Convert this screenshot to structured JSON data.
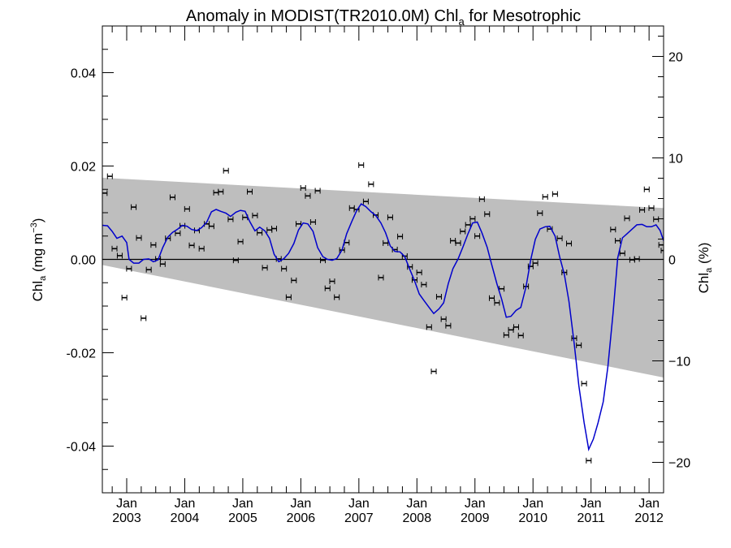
{
  "chart_data": {
    "type": "scatter",
    "title": {
      "prefix": "Anomaly in MODIST(TR2010.0M) Chl",
      "sub": "a",
      "suffix": " for Mesotrophic"
    },
    "ylabel_left": {
      "base": "Chl",
      "sub": "a",
      "unit_open": " (mg m",
      "sup": "−3",
      "unit_close": ")"
    },
    "ylabel_right": {
      "base": "Chl",
      "sub": "a",
      "unit": " (%)"
    },
    "x_ticks": [
      {
        "month": "Jan",
        "year": "2003",
        "t": 2003.0
      },
      {
        "month": "Jan",
        "year": "2004",
        "t": 2004.0
      },
      {
        "month": "Jan",
        "year": "2005",
        "t": 2005.0
      },
      {
        "month": "Jan",
        "year": "2006",
        "t": 2006.0
      },
      {
        "month": "Jan",
        "year": "2007",
        "t": 2007.0
      },
      {
        "month": "Jan",
        "year": "2008",
        "t": 2008.0
      },
      {
        "month": "Jan",
        "year": "2009",
        "t": 2009.0
      },
      {
        "month": "Jan",
        "year": "2010",
        "t": 2010.0
      },
      {
        "month": "Jan",
        "year": "2011",
        "t": 2011.0
      },
      {
        "month": "Jan",
        "year": "2012",
        "t": 2012.0
      }
    ],
    "xlim": [
      2002.58,
      2012.25
    ],
    "ylim_left": [
      -0.05,
      0.05
    ],
    "yticks_left": [
      "0.04",
      "0.02",
      "0.00",
      "-0.02",
      "-0.04"
    ],
    "ylim_right": [
      -23,
      23
    ],
    "yticks_right": [
      "20",
      "10",
      "0",
      "−10",
      "−20"
    ],
    "band": {
      "upper": [
        [
          2002.58,
          0.0175
        ],
        [
          2012.25,
          0.011
        ]
      ],
      "lower": [
        [
          2002.58,
          -0.0012
        ],
        [
          2012.25,
          -0.0253
        ]
      ]
    },
    "zero_line": 0,
    "points": [
      [
        2002.62,
        0.0142
      ],
      [
        2002.71,
        0.0178
      ],
      [
        2002.79,
        0.0023
      ],
      [
        2002.88,
        0.0008
      ],
      [
        2002.96,
        -0.0082
      ],
      [
        2003.04,
        -0.002
      ],
      [
        2003.12,
        0.0112
      ],
      [
        2003.21,
        0.0046
      ],
      [
        2003.29,
        -0.0126
      ],
      [
        2003.38,
        -0.0022
      ],
      [
        2003.46,
        0.0031
      ],
      [
        2003.54,
        0.0001
      ],
      [
        2003.62,
        -0.001
      ],
      [
        2003.71,
        0.0045
      ],
      [
        2003.79,
        0.0133
      ],
      [
        2003.88,
        0.0056
      ],
      [
        2003.96,
        0.0072
      ],
      [
        2004.04,
        0.0108
      ],
      [
        2004.12,
        0.003
      ],
      [
        2004.21,
        0.0062
      ],
      [
        2004.29,
        0.0023
      ],
      [
        2004.38,
        0.0076
      ],
      [
        2004.46,
        0.0071
      ],
      [
        2004.54,
        0.0143
      ],
      [
        2004.62,
        0.0145
      ],
      [
        2004.71,
        0.019
      ],
      [
        2004.79,
        0.0086
      ],
      [
        2004.88,
        -0.0002
      ],
      [
        2004.96,
        0.0038
      ],
      [
        2005.04,
        0.009
      ],
      [
        2005.12,
        0.0145
      ],
      [
        2005.21,
        0.0094
      ],
      [
        2005.29,
        0.0057
      ],
      [
        2005.38,
        -0.0018
      ],
      [
        2005.46,
        0.0063
      ],
      [
        2005.54,
        0.0066
      ],
      [
        2005.62,
        0.0001
      ],
      [
        2005.71,
        -0.002
      ],
      [
        2005.79,
        -0.0081
      ],
      [
        2005.88,
        -0.0045
      ],
      [
        2005.96,
        0.0076
      ],
      [
        2006.04,
        0.0153
      ],
      [
        2006.12,
        0.0136
      ],
      [
        2006.21,
        0.008
      ],
      [
        2006.29,
        0.0147
      ],
      [
        2006.38,
        -0.0002
      ],
      [
        2006.46,
        -0.0062
      ],
      [
        2006.54,
        -0.0047
      ],
      [
        2006.62,
        -0.0081
      ],
      [
        2006.71,
        0.002
      ],
      [
        2006.79,
        0.0036
      ],
      [
        2006.88,
        0.011
      ],
      [
        2006.96,
        0.0107
      ],
      [
        2007.04,
        0.0202
      ],
      [
        2007.12,
        0.0124
      ],
      [
        2007.21,
        0.0161
      ],
      [
        2007.29,
        0.0095
      ],
      [
        2007.38,
        -0.0039
      ],
      [
        2007.46,
        0.0035
      ],
      [
        2007.54,
        0.009
      ],
      [
        2007.62,
        0.0021
      ],
      [
        2007.71,
        0.0049
      ],
      [
        2007.79,
        0.0007
      ],
      [
        2007.88,
        -0.0016
      ],
      [
        2007.96,
        -0.0044
      ],
      [
        2008.04,
        -0.0028
      ],
      [
        2008.12,
        -0.0054
      ],
      [
        2008.21,
        -0.0145
      ],
      [
        2008.29,
        -0.024
      ],
      [
        2008.38,
        -0.008
      ],
      [
        2008.46,
        -0.0128
      ],
      [
        2008.54,
        -0.0142
      ],
      [
        2008.62,
        0.004
      ],
      [
        2008.71,
        0.0035
      ],
      [
        2008.79,
        0.006
      ],
      [
        2008.88,
        0.0074
      ],
      [
        2008.96,
        0.0087
      ],
      [
        2009.04,
        0.005
      ],
      [
        2009.12,
        0.0129
      ],
      [
        2009.21,
        0.0097
      ],
      [
        2009.29,
        -0.0083
      ],
      [
        2009.38,
        -0.0093
      ],
      [
        2009.46,
        -0.0063
      ],
      [
        2009.54,
        -0.0162
      ],
      [
        2009.62,
        -0.0151
      ],
      [
        2009.71,
        -0.0145
      ],
      [
        2009.79,
        -0.0163
      ],
      [
        2009.88,
        -0.0058
      ],
      [
        2009.96,
        -0.0015
      ],
      [
        2010.04,
        -0.0008
      ],
      [
        2010.12,
        0.0099
      ],
      [
        2010.21,
        0.0134
      ],
      [
        2010.29,
        0.0065
      ],
      [
        2010.38,
        0.014
      ],
      [
        2010.46,
        0.0045
      ],
      [
        2010.54,
        -0.0028
      ],
      [
        2010.62,
        0.0034
      ],
      [
        2010.71,
        -0.0169
      ],
      [
        2010.79,
        -0.0184
      ],
      [
        2010.88,
        -0.0266
      ],
      [
        2010.96,
        -0.0431
      ],
      [
        2011.38,
        0.0064
      ],
      [
        2011.46,
        0.004
      ],
      [
        2011.54,
        0.0013
      ],
      [
        2011.62,
        0.0088
      ],
      [
        2011.71,
        -0.0001
      ],
      [
        2011.79,
        0.0001
      ],
      [
        2011.88,
        0.0106
      ],
      [
        2011.96,
        0.015
      ],
      [
        2012.04,
        0.011
      ],
      [
        2012.12,
        0.0086
      ],
      [
        2012.21,
        0.0031
      ],
      [
        2012.25,
        0.0019
      ]
    ],
    "smooth_line": [
      [
        2002.58,
        0.0073
      ],
      [
        2002.67,
        0.0072
      ],
      [
        2002.75,
        0.006
      ],
      [
        2002.83,
        0.0045
      ],
      [
        2002.92,
        0.005
      ],
      [
        2003.0,
        0.0036
      ],
      [
        2003.04,
        0.0
      ],
      [
        2003.12,
        -0.0008
      ],
      [
        2003.21,
        -0.0008
      ],
      [
        2003.29,
        0.0
      ],
      [
        2003.38,
        0.0001
      ],
      [
        2003.46,
        -0.0005
      ],
      [
        2003.54,
        -0.0001
      ],
      [
        2003.62,
        0.0025
      ],
      [
        2003.71,
        0.0048
      ],
      [
        2003.79,
        0.0058
      ],
      [
        2003.88,
        0.0065
      ],
      [
        2003.96,
        0.0073
      ],
      [
        2004.04,
        0.0071
      ],
      [
        2004.12,
        0.0064
      ],
      [
        2004.21,
        0.0062
      ],
      [
        2004.29,
        0.0068
      ],
      [
        2004.38,
        0.008
      ],
      [
        2004.46,
        0.0102
      ],
      [
        2004.54,
        0.0107
      ],
      [
        2004.62,
        0.0103
      ],
      [
        2004.71,
        0.0099
      ],
      [
        2004.79,
        0.0092
      ],
      [
        2004.88,
        0.0101
      ],
      [
        2004.96,
        0.0105
      ],
      [
        2005.04,
        0.0103
      ],
      [
        2005.12,
        0.0081
      ],
      [
        2005.21,
        0.0061
      ],
      [
        2005.29,
        0.0069
      ],
      [
        2005.38,
        0.0061
      ],
      [
        2005.46,
        0.0045
      ],
      [
        2005.54,
        0.0011
      ],
      [
        2005.62,
        -0.0005
      ],
      [
        2005.71,
        0.0002
      ],
      [
        2005.79,
        0.0013
      ],
      [
        2005.88,
        0.0034
      ],
      [
        2005.96,
        0.0063
      ],
      [
        2006.04,
        0.0078
      ],
      [
        2006.12,
        0.0076
      ],
      [
        2006.21,
        0.006
      ],
      [
        2006.29,
        0.0025
      ],
      [
        2006.38,
        0.0006
      ],
      [
        2006.46,
        0.0
      ],
      [
        2006.54,
        -0.0002
      ],
      [
        2006.62,
        0.0002
      ],
      [
        2006.71,
        0.002
      ],
      [
        2006.79,
        0.0055
      ],
      [
        2006.88,
        0.0082
      ],
      [
        2006.96,
        0.0104
      ],
      [
        2007.04,
        0.0119
      ],
      [
        2007.12,
        0.0113
      ],
      [
        2007.21,
        0.0102
      ],
      [
        2007.29,
        0.0094
      ],
      [
        2007.38,
        0.0078
      ],
      [
        2007.46,
        0.0057
      ],
      [
        2007.54,
        0.0029
      ],
      [
        2007.62,
        0.0017
      ],
      [
        2007.71,
        0.0016
      ],
      [
        2007.79,
        0.0006
      ],
      [
        2007.88,
        -0.0022
      ],
      [
        2007.96,
        -0.0046
      ],
      [
        2008.04,
        -0.0074
      ],
      [
        2008.12,
        -0.0088
      ],
      [
        2008.21,
        -0.0103
      ],
      [
        2008.29,
        -0.0116
      ],
      [
        2008.38,
        -0.0106
      ],
      [
        2008.46,
        -0.0093
      ],
      [
        2008.54,
        -0.0052
      ],
      [
        2008.62,
        -0.002
      ],
      [
        2008.71,
        0.0001
      ],
      [
        2008.79,
        0.0026
      ],
      [
        2008.88,
        0.0055
      ],
      [
        2008.96,
        0.0078
      ],
      [
        2009.04,
        0.008
      ],
      [
        2009.12,
        0.0057
      ],
      [
        2009.21,
        0.0026
      ],
      [
        2009.29,
        -0.0012
      ],
      [
        2009.38,
        -0.0053
      ],
      [
        2009.46,
        -0.0085
      ],
      [
        2009.54,
        -0.0124
      ],
      [
        2009.62,
        -0.0122
      ],
      [
        2009.71,
        -0.0109
      ],
      [
        2009.79,
        -0.0103
      ],
      [
        2009.88,
        -0.0059
      ],
      [
        2009.96,
        -0.0001
      ],
      [
        2010.04,
        0.0043
      ],
      [
        2010.12,
        0.0065
      ],
      [
        2010.21,
        0.007
      ],
      [
        2010.29,
        0.0071
      ],
      [
        2010.38,
        0.005
      ],
      [
        2010.46,
        0.0005
      ],
      [
        2010.54,
        -0.0032
      ],
      [
        2010.62,
        -0.009
      ],
      [
        2010.71,
        -0.0181
      ],
      [
        2010.79,
        -0.0271
      ],
      [
        2010.88,
        -0.0349
      ],
      [
        2010.96,
        -0.0407
      ],
      [
        2011.04,
        -0.0385
      ],
      [
        2011.12,
        -0.035
      ],
      [
        2011.21,
        -0.0305
      ],
      [
        2011.29,
        -0.023
      ],
      [
        2011.38,
        -0.0115
      ],
      [
        2011.46,
        0.0003
      ],
      [
        2011.54,
        0.0046
      ],
      [
        2011.62,
        0.0055
      ],
      [
        2011.71,
        0.0065
      ],
      [
        2011.79,
        0.0074
      ],
      [
        2011.88,
        0.0075
      ],
      [
        2011.96,
        0.007
      ],
      [
        2012.04,
        0.007
      ],
      [
        2012.12,
        0.0074
      ],
      [
        2012.19,
        0.0062
      ],
      [
        2012.25,
        0.004
      ]
    ],
    "errorbar_halfwidth": 0.00035,
    "line_color": "#0000cc",
    "band_color": "#bebebe",
    "point_color": "#000000",
    "grid": false,
    "legend": "none"
  }
}
